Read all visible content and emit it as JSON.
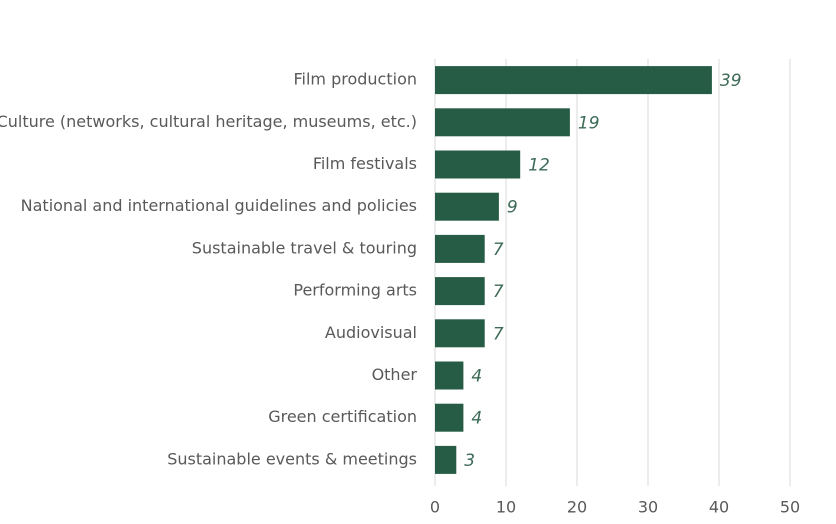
{
  "chart_data": {
    "type": "bar",
    "orientation": "horizontal",
    "categories": [
      "Film production",
      "Culture (networks, cultural heritage, museums, etc.)",
      "Film festivals",
      "National and international guidelines and policies",
      "Sustainable travel & touring",
      "Performing arts",
      "Audiovisual",
      "Other",
      "Green certification",
      "Sustainable events & meetings"
    ],
    "values": [
      39,
      19,
      12,
      9,
      7,
      7,
      7,
      4,
      4,
      3
    ],
    "color": "#265c45",
    "xlim": [
      0,
      50
    ],
    "xticks": [
      0,
      10,
      20,
      30,
      40,
      50
    ],
    "grid": true
  }
}
